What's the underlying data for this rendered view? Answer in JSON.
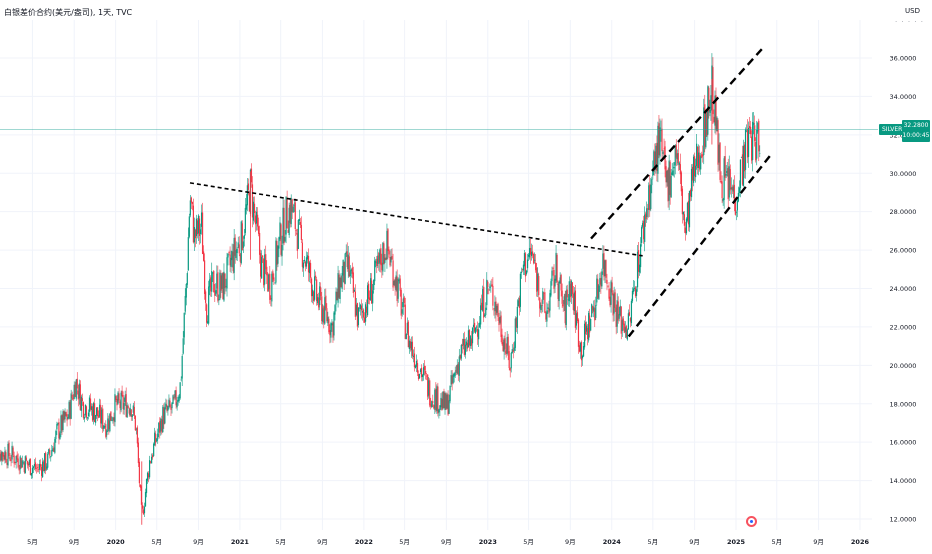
{
  "header": {
    "title": "白银差价合约(美元/盎司), 1天, TVC",
    "currency": "USD",
    "symbol_tag": "SILVER",
    "price_tag": "32.2800",
    "countdown_tag": "10:00:45"
  },
  "colors": {
    "up": "#089981",
    "down": "#f23645",
    "price_line": "#26a69a",
    "trendline": "#000000",
    "grid": "#f0f3fa"
  },
  "chart_data": {
    "type": "candlestick",
    "title": "白银差价合约(美元/盎司), 1天, TVC",
    "x_ticks": [
      "5月",
      "9月",
      "2020",
      "5月",
      "9月",
      "2021",
      "5月",
      "9月",
      "2022",
      "5月",
      "9月",
      "2023",
      "5月",
      "9月",
      "2024",
      "5月",
      "9月",
      "2025",
      "5月",
      "9月",
      "2026"
    ],
    "x_tick_dates": [
      "2019-05-01",
      "2019-09-01",
      "2020-01-01",
      "2020-05-01",
      "2020-09-01",
      "2021-01-01",
      "2021-05-01",
      "2021-09-01",
      "2022-01-01",
      "2022-05-01",
      "2022-09-01",
      "2023-01-01",
      "2023-05-01",
      "2023-09-01",
      "2024-01-01",
      "2024-05-01",
      "2024-09-01",
      "2025-01-01",
      "2025-05-01",
      "2025-09-01",
      "2026-01-01"
    ],
    "y_ticks": [
      "12.0000",
      "14.0000",
      "16.0000",
      "18.0000",
      "20.0000",
      "22.0000",
      "24.0000",
      "26.0000",
      "28.0000",
      "30.0000",
      "32.0000",
      "34.0000",
      "36.0000"
    ],
    "ylim": [
      11.8,
      37.6
    ],
    "last_price": 32.28,
    "price_path": [
      [
        "2019-01-01",
        15.6
      ],
      [
        "2019-03-01",
        15.3
      ],
      [
        "2019-05-15",
        14.6
      ],
      [
        "2019-06-15",
        15.0
      ],
      [
        "2019-07-15",
        16.6
      ],
      [
        "2019-08-15",
        17.4
      ],
      [
        "2019-09-05",
        19.2
      ],
      [
        "2019-09-25",
        18.0
      ],
      [
        "2019-11-01",
        17.6
      ],
      [
        "2019-12-05",
        16.9
      ],
      [
        "2019-12-31",
        17.9
      ],
      [
        "2020-02-15",
        18.0
      ],
      [
        "2020-03-01",
        16.8
      ],
      [
        "2020-03-18",
        12.0
      ],
      [
        "2020-04-10",
        15.0
      ],
      [
        "2020-05-20",
        17.4
      ],
      [
        "2020-06-20",
        17.8
      ],
      [
        "2020-07-10",
        19.0
      ],
      [
        "2020-07-28",
        24.5
      ],
      [
        "2020-08-07",
        28.8
      ],
      [
        "2020-08-20",
        26.7
      ],
      [
        "2020-09-10",
        27.2
      ],
      [
        "2020-09-25",
        23.0
      ],
      [
        "2020-10-15",
        24.3
      ],
      [
        "2020-11-10",
        24.0
      ],
      [
        "2020-12-15",
        25.8
      ],
      [
        "2021-01-05",
        26.5
      ],
      [
        "2021-02-01",
        29.3
      ],
      [
        "2021-03-05",
        25.2
      ],
      [
        "2021-03-31",
        24.2
      ],
      [
        "2021-05-15",
        27.7
      ],
      [
        "2021-06-01",
        28.2
      ],
      [
        "2021-07-01",
        26.2
      ],
      [
        "2021-08-15",
        23.5
      ],
      [
        "2021-09-30",
        22.0
      ],
      [
        "2021-10-20",
        24.2
      ],
      [
        "2021-11-15",
        25.2
      ],
      [
        "2021-12-15",
        22.4
      ],
      [
        "2022-01-15",
        23.5
      ],
      [
        "2022-03-07",
        26.3
      ],
      [
        "2022-04-01",
        24.8
      ],
      [
        "2022-05-15",
        21.2
      ],
      [
        "2022-07-15",
        18.6
      ],
      [
        "2022-09-01",
        17.8
      ],
      [
        "2022-10-10",
        20.5
      ],
      [
        "2022-11-15",
        21.3
      ],
      [
        "2022-12-31",
        24.0
      ],
      [
        "2023-01-20",
        23.5
      ],
      [
        "2023-03-08",
        20.0
      ],
      [
        "2023-04-15",
        25.2
      ],
      [
        "2023-05-10",
        25.8
      ],
      [
        "2023-06-20",
        22.5
      ],
      [
        "2023-07-20",
        25.0
      ],
      [
        "2023-08-15",
        22.7
      ],
      [
        "2023-09-01",
        24.4
      ],
      [
        "2023-10-03",
        20.8
      ],
      [
        "2023-11-15",
        23.4
      ],
      [
        "2023-12-05",
        25.5
      ],
      [
        "2024-01-20",
        22.5
      ],
      [
        "2024-02-20",
        22.0
      ],
      [
        "2024-03-15",
        25.0
      ],
      [
        "2024-04-15",
        28.5
      ],
      [
        "2024-05-20",
        31.8
      ],
      [
        "2024-06-10",
        29.3
      ],
      [
        "2024-07-10",
        31.3
      ],
      [
        "2024-08-05",
        26.8
      ],
      [
        "2024-08-25",
        29.5
      ],
      [
        "2024-09-25",
        32.0
      ],
      [
        "2024-10-22",
        34.6
      ],
      [
        "2024-11-15",
        30.0
      ],
      [
        "2024-12-30",
        28.8
      ],
      [
        "2025-01-20",
        30.6
      ],
      [
        "2025-02-10",
        32.0
      ],
      [
        "2025-03-03",
        31.5
      ],
      [
        "2025-03-13",
        32.28
      ]
    ],
    "trendlines": [
      {
        "style": "dotted",
        "from": [
          "2020-08-07",
          29.5
        ],
        "to": [
          "2024-04-01",
          25.7
        ]
      },
      {
        "style": "dashed",
        "from": [
          "2023-11-01",
          26.6
        ],
        "to": [
          "2025-03-25",
          36.6
        ]
      },
      {
        "style": "dashed",
        "from": [
          "2024-02-20",
          21.5
        ],
        "to": [
          "2025-04-15",
          31.0
        ]
      }
    ]
  }
}
